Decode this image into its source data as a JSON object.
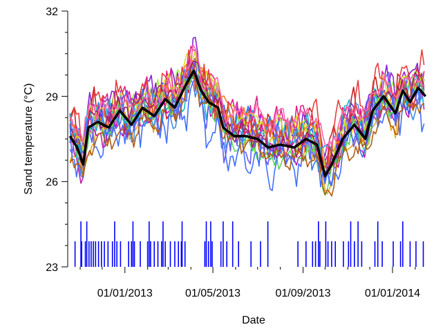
{
  "chart_data": {
    "type": "line",
    "title": "",
    "xlabel": "Date",
    "ylabel": "Sand temperature (°C)",
    "x_start": "2012-10-15",
    "x_end": "2014-02-20",
    "ylim": [
      23,
      32
    ],
    "y_ticks": [
      23,
      26,
      29,
      32
    ],
    "x_ticks": [
      {
        "date": "2013-01-01",
        "label": "01/01/2013"
      },
      {
        "date": "2013-05-01",
        "label": "01/05/2013"
      },
      {
        "date": "2013-09-01",
        "label": "01/09/2013"
      },
      {
        "date": "2014-01-01",
        "label": "01/01/2014"
      }
    ],
    "grid": false,
    "mean_series": {
      "name": "",
      "color": "#000000",
      "points": [
        [
          "2012-10-18",
          27.6
        ],
        [
          "2012-10-28",
          27.2
        ],
        [
          "2012-11-05",
          26.6
        ],
        [
          "2012-11-12",
          27.9
        ],
        [
          "2012-11-25",
          28.1
        ],
        [
          "2012-12-10",
          27.9
        ],
        [
          "2012-12-25",
          28.5
        ],
        [
          "2013-01-10",
          28.0
        ],
        [
          "2013-01-25",
          28.6
        ],
        [
          "2013-02-10",
          28.3
        ],
        [
          "2013-02-25",
          28.9
        ],
        [
          "2013-03-10",
          28.6
        ],
        [
          "2013-03-25",
          29.4
        ],
        [
          "2013-04-05",
          29.9
        ],
        [
          "2013-04-15",
          29.2
        ],
        [
          "2013-04-25",
          28.8
        ],
        [
          "2013-05-08",
          28.6
        ],
        [
          "2013-05-15",
          27.9
        ],
        [
          "2013-05-30",
          27.6
        ],
        [
          "2013-06-15",
          27.6
        ],
        [
          "2013-07-01",
          27.5
        ],
        [
          "2013-07-15",
          27.2
        ],
        [
          "2013-08-01",
          27.3
        ],
        [
          "2013-08-20",
          27.2
        ],
        [
          "2013-09-05",
          27.5
        ],
        [
          "2013-09-20",
          27.3
        ],
        [
          "2013-10-01",
          26.2
        ],
        [
          "2013-10-10",
          26.6
        ],
        [
          "2013-10-25",
          27.5
        ],
        [
          "2013-11-10",
          28.0
        ],
        [
          "2013-11-25",
          27.5
        ],
        [
          "2013-12-05",
          28.5
        ],
        [
          "2013-12-20",
          29.0
        ],
        [
          "2014-01-05",
          28.4
        ],
        [
          "2014-01-15",
          29.2
        ],
        [
          "2014-01-25",
          28.8
        ],
        [
          "2014-02-05",
          29.3
        ],
        [
          "2014-02-15",
          29.0
        ]
      ]
    },
    "individual_series_colors": [
      "#2050e6",
      "#cc1c1c",
      "#9ef23a",
      "#8a1fd6",
      "#e0208c",
      "#e6a81a",
      "#3f8ae6",
      "#f07a1a",
      "#c016b0",
      "#19b8cf",
      "#6a5cf0",
      "#d8db28",
      "#e63d3d",
      "#5ad45a",
      "#a02070",
      "#4070ff",
      "#ff66aa",
      "#b05a10"
    ],
    "event_bars": {
      "color": "#0000ff",
      "tall_value": 24.6,
      "short_value": 23.9,
      "tall_dates": [
        "2012-11-02",
        "2012-11-10",
        "2012-12-18",
        "2013-01-12",
        "2013-02-03",
        "2013-02-22",
        "2013-03-20",
        "2013-04-22",
        "2013-04-28",
        "2013-05-15",
        "2013-05-28",
        "2013-07-15",
        "2013-09-22",
        "2013-10-02",
        "2013-11-05",
        "2013-11-15",
        "2013-12-12",
        "2014-01-15"
      ],
      "short_dates": [
        "2012-10-25",
        "2012-11-03",
        "2012-11-08",
        "2012-11-13",
        "2012-11-16",
        "2012-11-19",
        "2012-11-22",
        "2012-11-26",
        "2012-11-30",
        "2012-12-04",
        "2012-12-09",
        "2012-12-15",
        "2012-12-21",
        "2012-12-26",
        "2013-01-06",
        "2013-01-10",
        "2013-01-14",
        "2013-01-22",
        "2013-02-01",
        "2013-02-05",
        "2013-02-10",
        "2013-02-15",
        "2013-02-20",
        "2013-02-25",
        "2013-03-04",
        "2013-03-10",
        "2013-03-15",
        "2013-03-19",
        "2013-03-24",
        "2013-04-20",
        "2013-04-25",
        "2013-04-30",
        "2013-05-12",
        "2013-05-20",
        "2013-06-05",
        "2013-06-22",
        "2013-07-05",
        "2013-08-25",
        "2013-09-05",
        "2013-09-14",
        "2013-09-18",
        "2013-09-24",
        "2013-10-05",
        "2013-10-10",
        "2013-10-15",
        "2013-10-26",
        "2013-11-02",
        "2013-11-10",
        "2013-11-20",
        "2013-12-08",
        "2013-12-18",
        "2014-01-02",
        "2014-01-12",
        "2014-01-25",
        "2014-02-02",
        "2014-02-12"
      ]
    }
  }
}
